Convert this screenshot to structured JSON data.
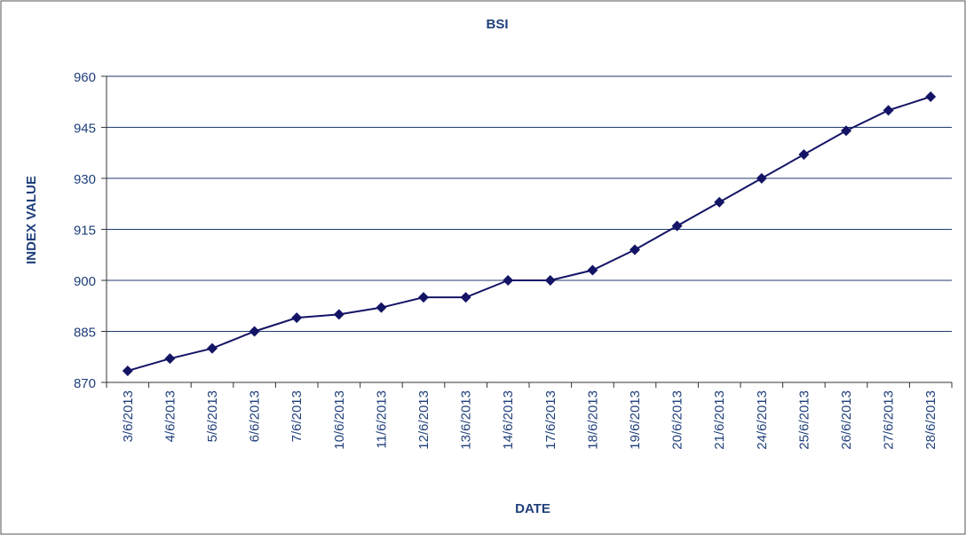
{
  "chart_data": {
    "type": "line",
    "title": "BSI",
    "x_label": "DATE",
    "y_label": "INDEX VALUE",
    "categories": [
      "3/6/2013",
      "4/6/2013",
      "5/6/2013",
      "6/6/2013",
      "7/6/2013",
      "10/6/2013",
      "11/6/2013",
      "12/6/2013",
      "13/6/2013",
      "14/6/2013",
      "17/6/2013",
      "18/6/2013",
      "19/6/2013",
      "20/6/2013",
      "21/6/2013",
      "24/6/2013",
      "25/6/2013",
      "26/6/2013",
      "27/6/2013",
      "28/6/2013"
    ],
    "values": [
      873.4,
      877,
      880,
      885,
      889,
      890,
      892,
      895,
      895,
      900,
      900,
      903,
      909,
      916,
      923,
      930,
      937,
      944,
      950,
      954
    ],
    "color": "#141466",
    "ylim": [
      870,
      960
    ],
    "yticks": [
      870,
      885,
      900,
      915,
      930,
      945,
      960
    ],
    "grid": true
  }
}
